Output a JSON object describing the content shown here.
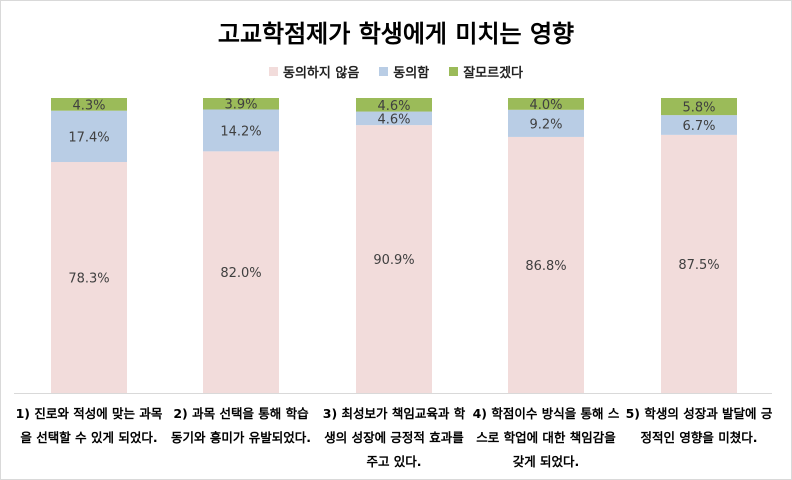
{
  "chart_data": {
    "type": "bar",
    "stacked": true,
    "title": "고교학점제가 학생에게 미치는 영향",
    "xlabel": "",
    "ylabel": "",
    "ylim": [
      0,
      100
    ],
    "legend_position": "top",
    "categories": [
      "1) 진로와 적성에 맞는 과목을 선택할 수 있게 되었다.",
      "2) 과목 선택을 통해 학습 동기와 흥미가 유발되었다.",
      "3) 최성보가 책임교육과 학생의 성장에 긍정적 효과를 주고 있다.",
      "4) 학점이수 방식을 통해 스스로 학업에 대한 책임감을 갖게 되었다.",
      "5) 학생의 성장과 발달에 긍정적인 영향을 미쳤다."
    ],
    "series": [
      {
        "name": "동의하지 않음",
        "color": "#f2dcdb",
        "values": [
          78.3,
          82.0,
          90.9,
          86.8,
          87.5
        ],
        "labels": [
          "78.3%",
          "82.0%",
          "90.9%",
          "86.8%",
          "87.5%"
        ]
      },
      {
        "name": "동의함",
        "color": "#b9cde5",
        "values": [
          17.4,
          14.2,
          4.6,
          9.2,
          6.7
        ],
        "labels": [
          "17.4%",
          "14.2%",
          "4.6%",
          "9.2%",
          "6.7%"
        ]
      },
      {
        "name": "잘모르겠다",
        "color": "#9bbb59",
        "values": [
          4.3,
          3.9,
          4.6,
          4.0,
          5.8
        ],
        "labels": [
          "4.3%",
          "3.9%",
          "4.6%",
          "4.0%",
          "5.8%"
        ]
      }
    ]
  }
}
